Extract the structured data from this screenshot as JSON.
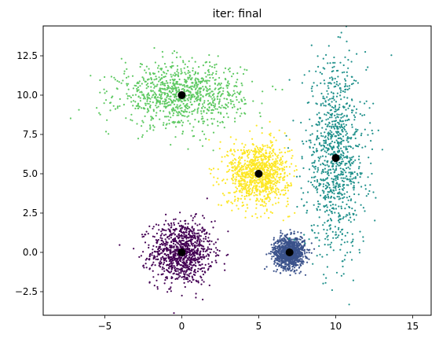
{
  "chart_data": {
    "type": "scatter",
    "title": "iter: final",
    "xlabel": "",
    "ylabel": "",
    "xlim": [
      -9.0,
      16.2
    ],
    "ylim": [
      -4.0,
      14.4
    ],
    "grid": false,
    "legend": "none",
    "xticks": [
      -5,
      0,
      5,
      10,
      15
    ],
    "xtick_labels": [
      "−5",
      "0",
      "5",
      "10",
      "15"
    ],
    "yticks": [
      -2.5,
      0.0,
      2.5,
      5.0,
      7.5,
      10.0,
      12.5
    ],
    "ytick_labels": [
      "−2.5",
      "0.0",
      "2.5",
      "5.0",
      "7.5",
      "10.0",
      "12.5"
    ],
    "clusters": [
      {
        "center": [
          0,
          0
        ],
        "spread": [
          1.0,
          1.0
        ],
        "approx_points": 1000,
        "color": "#440154"
      },
      {
        "center": [
          7,
          0
        ],
        "spread": [
          0.5,
          0.5
        ],
        "approx_points": 1000,
        "color": "#3b528b"
      },
      {
        "center": [
          10,
          6
        ],
        "spread": [
          1.0,
          3.0
        ],
        "approx_points": 1000,
        "color": "#21918c"
      },
      {
        "center": [
          0,
          10
        ],
        "spread": [
          2.0,
          1.0
        ],
        "approx_points": 1000,
        "color": "#5ec962"
      },
      {
        "center": [
          5,
          5
        ],
        "spread": [
          1.0,
          1.0
        ],
        "approx_points": 1000,
        "color": "#fde725"
      }
    ],
    "centroids": {
      "color": "#000000",
      "points": [
        [
          0,
          0
        ],
        [
          7,
          0
        ],
        [
          10,
          6
        ],
        [
          0,
          10
        ],
        [
          5,
          5
        ]
      ]
    }
  }
}
